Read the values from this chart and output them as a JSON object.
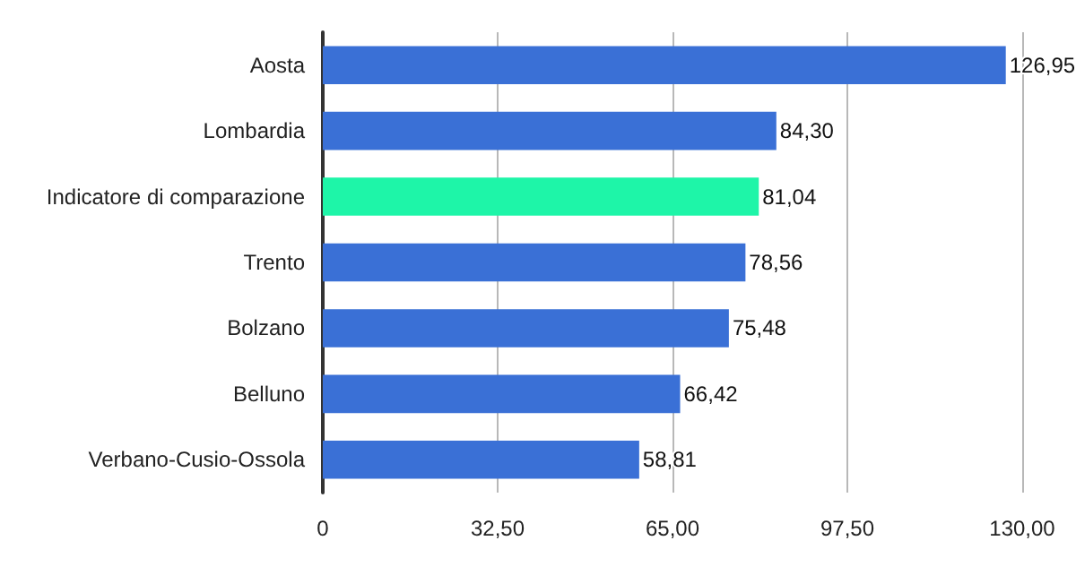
{
  "chart_data": {
    "type": "bar",
    "orientation": "horizontal",
    "categories": [
      "Aosta",
      "Lombardia",
      "Indicatore di comparazione",
      "Trento",
      "Bolzano",
      "Belluno",
      "Verbano-Cusio-Ossola"
    ],
    "values": [
      126.95,
      84.3,
      81.04,
      78.56,
      75.48,
      66.42,
      58.81
    ],
    "colors": [
      "#3a70d6",
      "#3a70d6",
      "#1ef5a8",
      "#3a70d6",
      "#3a70d6",
      "#3a70d6",
      "#3a70d6"
    ],
    "value_labels": [
      "126,95",
      "84,30",
      "81,04",
      "78,56",
      "75,48",
      "66,42",
      "58,81"
    ],
    "xlim": [
      0,
      130
    ],
    "xticks": [
      0,
      {
        "value": 32.5,
        "label": "32,50"
      },
      {
        "value": 65,
        "label": "65,00"
      },
      {
        "value": 97.5,
        "label": "97,50"
      },
      {
        "value": 130,
        "label": "130,00"
      }
    ],
    "grid": "x"
  }
}
